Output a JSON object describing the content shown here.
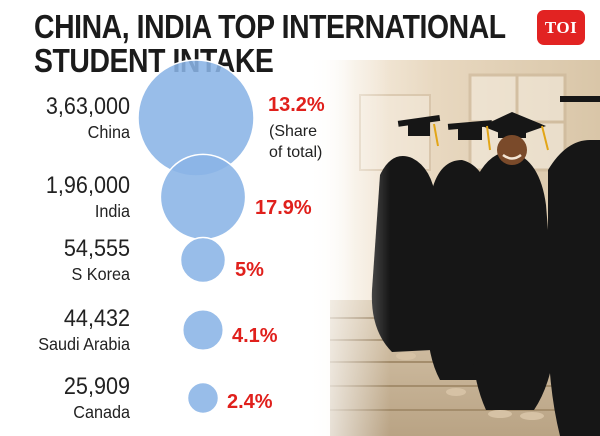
{
  "header": {
    "title_line1": "CHINA, INDIA TOP INTERNATIONAL",
    "title_line2": "STUDENT INTAKE",
    "logo_text": "TOI"
  },
  "photo": {
    "description_icon": "graduates-in-gowns-photo"
  },
  "chart_data": {
    "type": "bubble",
    "title": "CHINA, INDIA TOP INTERNATIONAL STUDENT INTAKE",
    "value_unit": "students",
    "share_note": "(Share of total)",
    "categories": [
      "China",
      "India",
      "S Korea",
      "Saudi Arabia",
      "Canada"
    ],
    "value_labels": [
      "3,63,000",
      "1,96,000",
      "54,555",
      "44,432",
      "25,909"
    ],
    "values": [
      363000,
      196000,
      54555,
      44432,
      25909
    ],
    "share_labels": [
      "13.2%",
      "17.9%",
      "5%",
      "4.1%",
      "2.4%"
    ],
    "shares": [
      13.2,
      17.9,
      5.0,
      4.1,
      2.4
    ],
    "colors": {
      "bubble": "#8ab4e6",
      "bubble_stroke": "#ffffff",
      "share_text": "#e0201c",
      "value_text": "#222222"
    }
  }
}
